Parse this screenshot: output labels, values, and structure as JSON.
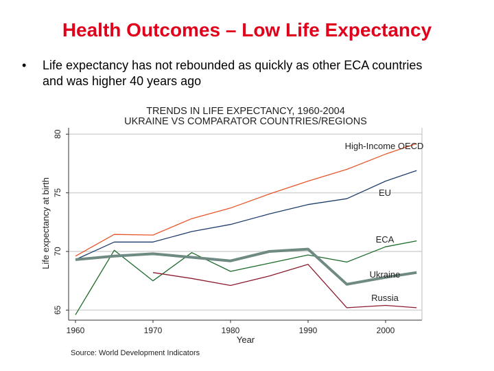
{
  "slide": {
    "title": "Health Outcomes – Low Life Expectancy",
    "bullet_marker": "•",
    "bullet": "Life expectancy has not rebounded as quickly as other ECA countries and was higher 40 years ago"
  },
  "chart_data": {
    "type": "line",
    "title": [
      "TRENDS IN LIFE EXPECTANCY, 1960-2004",
      "UKRAINE VS COMPARATOR COUNTRIES/REGIONS"
    ],
    "xlabel": "Year",
    "ylabel": "Life expectancy at birth",
    "xlim": [
      1960,
      2004
    ],
    "ylim": [
      64.5,
      80.5
    ],
    "xticks": [
      1960,
      1970,
      1980,
      1990,
      2000
    ],
    "yticks": [
      65,
      70,
      75,
      80
    ],
    "grid": "horizontal",
    "source": "Source: World Development Indicators",
    "x": [
      1960,
      1965,
      1970,
      1975,
      1980,
      1985,
      1990,
      1995,
      2000,
      2004
    ],
    "series": [
      {
        "name": "High-Income OECD",
        "color": "#e8552a",
        "width": 1.3,
        "values": [
          69.6,
          71.45,
          71.4,
          72.8,
          73.7,
          74.9,
          76.0,
          77.0,
          78.3,
          79.2
        ]
      },
      {
        "name": "EU",
        "color": "#1f3d6b",
        "width": 1.3,
        "values": [
          69.3,
          70.8,
          70.8,
          71.7,
          72.3,
          73.2,
          74.0,
          74.5,
          76.0,
          76.9
        ]
      },
      {
        "name": "ECA",
        "color": "#1c6b2a",
        "width": 1.3,
        "values": [
          64.6,
          70.1,
          67.5,
          69.9,
          68.3,
          69.0,
          69.7,
          69.1,
          70.4,
          70.9
        ]
      },
      {
        "name": "Ukraine",
        "color": "#6f8a83",
        "width": 4,
        "values": [
          69.3,
          69.6,
          69.8,
          69.5,
          69.2,
          70.0,
          70.2,
          67.2,
          67.8,
          68.2
        ]
      },
      {
        "name": "Russia",
        "color": "#8b1a2e",
        "width": 1.3,
        "values": [
          null,
          null,
          68.2,
          67.7,
          67.1,
          67.9,
          68.9,
          65.2,
          65.4,
          65.2
        ]
      }
    ]
  }
}
